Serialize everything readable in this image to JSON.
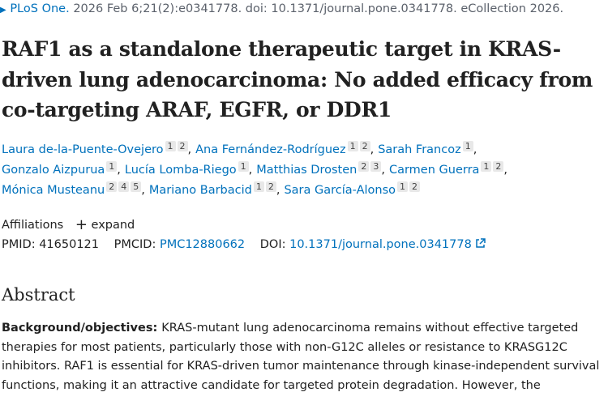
{
  "citation": {
    "journal": "PLoS One.",
    "details": "2026 Feb 6;21(2):e0341778. doi: 10.1371/journal.pone.0341778. eCollection 2026."
  },
  "title": "RAF1 as a standalone therapeutic target in KRAS-driven lung adenocarcinoma: No added efficacy from co-targeting ARAF, EGFR, or DDR1",
  "author_rows": [
    [
      {
        "name": "Laura de-la-Puente-Ovejero",
        "affiliations": [
          "1",
          "2"
        ],
        "separator": ","
      },
      {
        "name": "Ana Fernández-Rodríguez",
        "affiliations": [
          "1",
          "2"
        ],
        "separator": ","
      },
      {
        "name": "Sarah Francoz",
        "affiliations": [
          "1"
        ],
        "separator": ","
      }
    ],
    [
      {
        "name": "Gonzalo Aizpurua",
        "affiliations": [
          "1"
        ],
        "separator": ","
      },
      {
        "name": "Lucía Lomba-Riego",
        "affiliations": [
          "1"
        ],
        "separator": ","
      },
      {
        "name": "Matthias Drosten",
        "affiliations": [
          "2",
          "3"
        ],
        "separator": ","
      },
      {
        "name": "Carmen Guerra",
        "affiliations": [
          "1",
          "2"
        ],
        "separator": ","
      }
    ],
    [
      {
        "name": "Mónica Musteanu",
        "affiliations": [
          "2",
          "4",
          "5"
        ],
        "separator": ","
      },
      {
        "name": "Mariano Barbacid",
        "affiliations": [
          "1",
          "2"
        ],
        "separator": ","
      },
      {
        "name": "Sara García-Alonso",
        "affiliations": [
          "1",
          "2"
        ]
      }
    ]
  ],
  "affiliations": {
    "label": "Affiliations",
    "toggle": "expand"
  },
  "identifiers": {
    "pmid_label": "PMID:",
    "pmid": "41650121",
    "pmcid_label": "PMCID:",
    "pmcid": "PMC12880662",
    "doi_label": "DOI:",
    "doi": "10.1371/journal.pone.0341778"
  },
  "abstract": {
    "heading": "Abstract",
    "label": "Background/objectives:",
    "lines": [
      "KRAS-mutant lung adenocarcinoma remains without effective targeted",
      "therapies for most patients, particularly those with non-G12C alleles or resistance to KRASG12C",
      "inhibitors. RAF1 is essential for KRAS-driven tumor maintenance through kinase-independent survival",
      "functions, making it an attractive candidate for targeted protein degradation. However, the"
    ]
  }
}
